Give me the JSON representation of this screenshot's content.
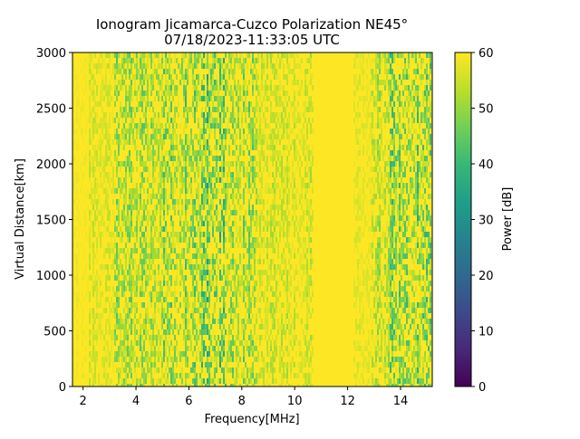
{
  "chart_data": {
    "type": "heatmap",
    "title": "Ionogram Jicamarca-Cuzco Polarization NE45°",
    "subtitle": "07/18/2023-11:33:05 UTC",
    "xlabel": "Frequency[MHz]",
    "ylabel": "Virtual Distance[km]",
    "xlim": [
      1.6,
      15.2
    ],
    "ylim": [
      0,
      3000
    ],
    "x_ticks": [
      2,
      4,
      6,
      8,
      10,
      12,
      14
    ],
    "y_ticks": [
      0,
      500,
      1000,
      1500,
      2000,
      2500,
      3000
    ],
    "colorbar": {
      "label": "Power [dB]",
      "range": [
        0,
        60
      ],
      "ticks": [
        0,
        10,
        20,
        30,
        40,
        50,
        60
      ],
      "colormap": "viridis"
    },
    "baseline_power_db": 60,
    "bands": [
      {
        "x_range": [
          1.6,
          2.2
        ],
        "mean_power_db": 59
      },
      {
        "x_range": [
          2.2,
          3.2
        ],
        "mean_power_db": 57
      },
      {
        "x_range": [
          3.2,
          5.0
        ],
        "mean_power_db": 53
      },
      {
        "x_range": [
          5.0,
          6.4
        ],
        "mean_power_db": 51
      },
      {
        "x_range": [
          6.4,
          7.4
        ],
        "mean_power_db": 48
      },
      {
        "x_range": [
          7.4,
          8.6
        ],
        "mean_power_db": 52
      },
      {
        "x_range": [
          8.6,
          10.7
        ],
        "mean_power_db": 56
      },
      {
        "x_range": [
          10.7,
          12.2
        ],
        "mean_power_db": 60
      },
      {
        "x_range": [
          12.2,
          12.9
        ],
        "mean_power_db": 58
      },
      {
        "x_range": [
          12.9,
          13.6
        ],
        "mean_power_db": 54
      },
      {
        "x_range": [
          13.6,
          15.2
        ],
        "mean_power_db": 50
      }
    ],
    "grid": false,
    "legend": "none"
  },
  "colors": {
    "viridis": [
      "#440154",
      "#482878",
      "#3e4989",
      "#31688e",
      "#26828e",
      "#1f9e89",
      "#35b779",
      "#6ece58",
      "#b5de2b",
      "#fde725"
    ]
  }
}
